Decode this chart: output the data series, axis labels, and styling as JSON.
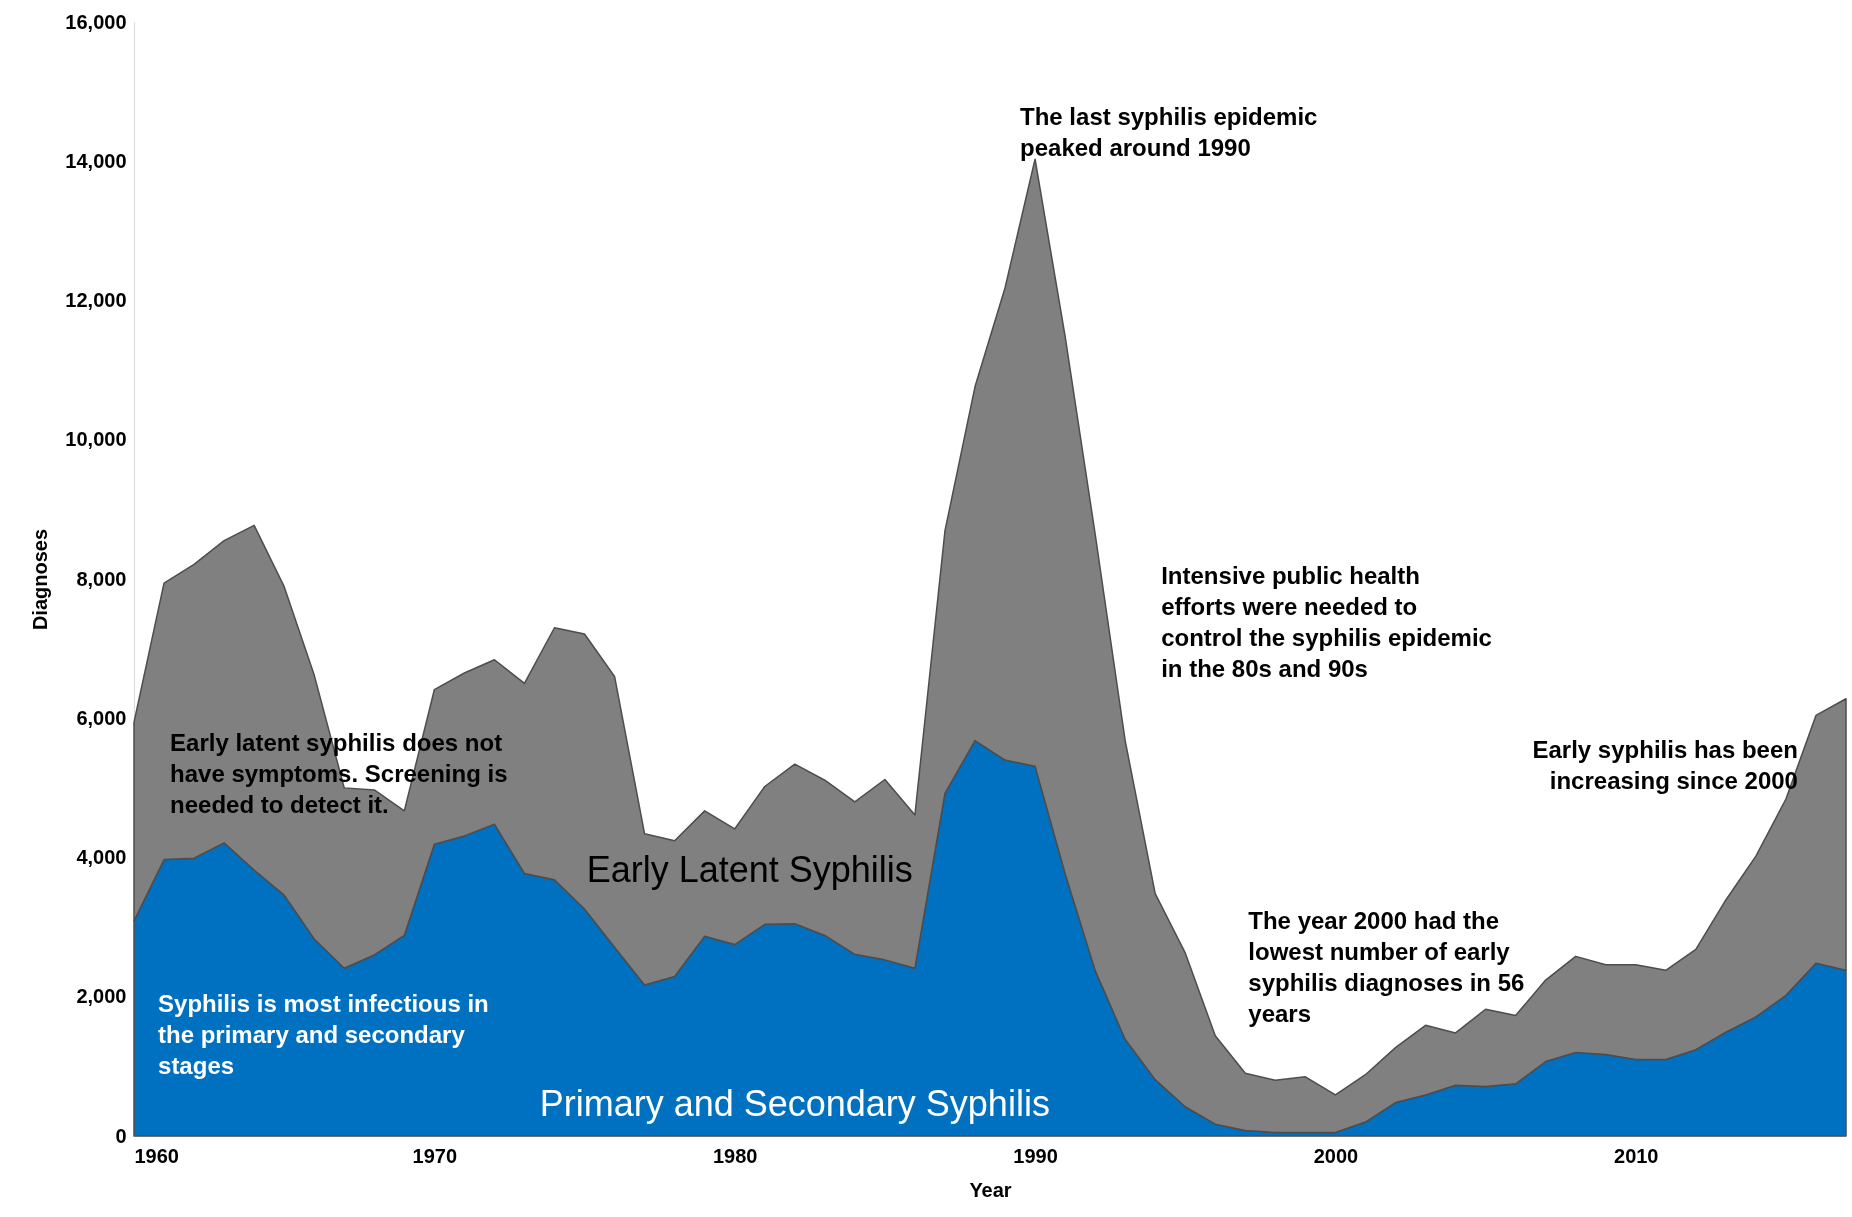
{
  "chart_data": {
    "type": "area",
    "stacked": true,
    "xlabel": "Year",
    "ylabel": "Diagnoses",
    "x": [
      1960,
      1961,
      1962,
      1963,
      1964,
      1965,
      1966,
      1967,
      1968,
      1969,
      1970,
      1971,
      1972,
      1973,
      1974,
      1975,
      1976,
      1977,
      1978,
      1979,
      1980,
      1981,
      1982,
      1983,
      1984,
      1985,
      1986,
      1987,
      1988,
      1989,
      1990,
      1991,
      1992,
      1993,
      1994,
      1995,
      1996,
      1997,
      1998,
      1999,
      2000,
      2001,
      2002,
      2003,
      2004,
      2005,
      2006,
      2007,
      2008,
      2009,
      2010,
      2011,
      2012,
      2013,
      2014,
      2015,
      2016,
      2017
    ],
    "series": [
      {
        "name": "Primary and Secondary Syphilis",
        "color": "#0070c0",
        "values": [
          3090,
          3970,
          3990,
          4210,
          3820,
          3460,
          2830,
          2410,
          2600,
          2880,
          4190,
          4310,
          4480,
          3770,
          3680,
          3260,
          2710,
          2170,
          2290,
          2870,
          2750,
          3040,
          3050,
          2880,
          2610,
          2530,
          2410,
          4920,
          5680,
          5400,
          5310,
          3770,
          2380,
          1390,
          810,
          420,
          170,
          80,
          50,
          50,
          50,
          200,
          480,
          590,
          730,
          710,
          750,
          1070,
          1200,
          1170,
          1100,
          1100,
          1240,
          1490,
          1710,
          2020,
          2480,
          2380
        ]
      },
      {
        "name": "Early Latent Syphilis",
        "color": "#808080",
        "values": [
          2850,
          3970,
          4220,
          4340,
          4950,
          4430,
          3790,
          2590,
          2370,
          1790,
          2220,
          2340,
          2360,
          2730,
          3620,
          3950,
          3890,
          2170,
          1950,
          1800,
          1660,
          1980,
          2290,
          2230,
          2190,
          2590,
          2200,
          3770,
          5080,
          6780,
          8720,
          7720,
          6270,
          4290,
          2670,
          2210,
          1270,
          820,
          750,
          800,
          540,
          680,
          790,
          1000,
          750,
          1110,
          980,
          1170,
          1380,
          1290,
          1360,
          1280,
          1440,
          1900,
          2310,
          2820,
          3560,
          3900
        ]
      }
    ],
    "xlim": [
      1960,
      2017
    ],
    "xticks": [
      1960,
      1970,
      1980,
      1990,
      2000,
      2010
    ],
    "ylim": [
      0,
      16000
    ],
    "yticks": [
      0,
      {
        "value": 2000,
        "label": "2,000"
      },
      {
        "value": 4000,
        "label": "4,000"
      },
      {
        "value": 6000,
        "label": "6,000"
      },
      {
        "value": 8000,
        "label": "8,000"
      },
      {
        "value": 10000,
        "label": "10,000"
      },
      {
        "value": 12000,
        "label": "12,000"
      },
      {
        "value": 14000,
        "label": "14,000"
      },
      {
        "value": 16000,
        "label": "16,000"
      }
    ],
    "grid": false,
    "legend": false,
    "annotations": [
      "The last syphilis epidemic\npeaked around 1990",
      "Intensive public health\nefforts were needed to\ncontrol the syphilis epidemic\nin the 80s and 90s",
      "Early syphilis has been\nincreasing since 2000",
      "The year 2000 had the\nlowest number of early\nsyphilis diagnoses in 56\nyears",
      "Early latent syphilis does not\nhave symptoms. Screening is\nneeded to detect it.",
      "Syphilis is most infectious in\nthe primary and secondary\nstages"
    ]
  }
}
